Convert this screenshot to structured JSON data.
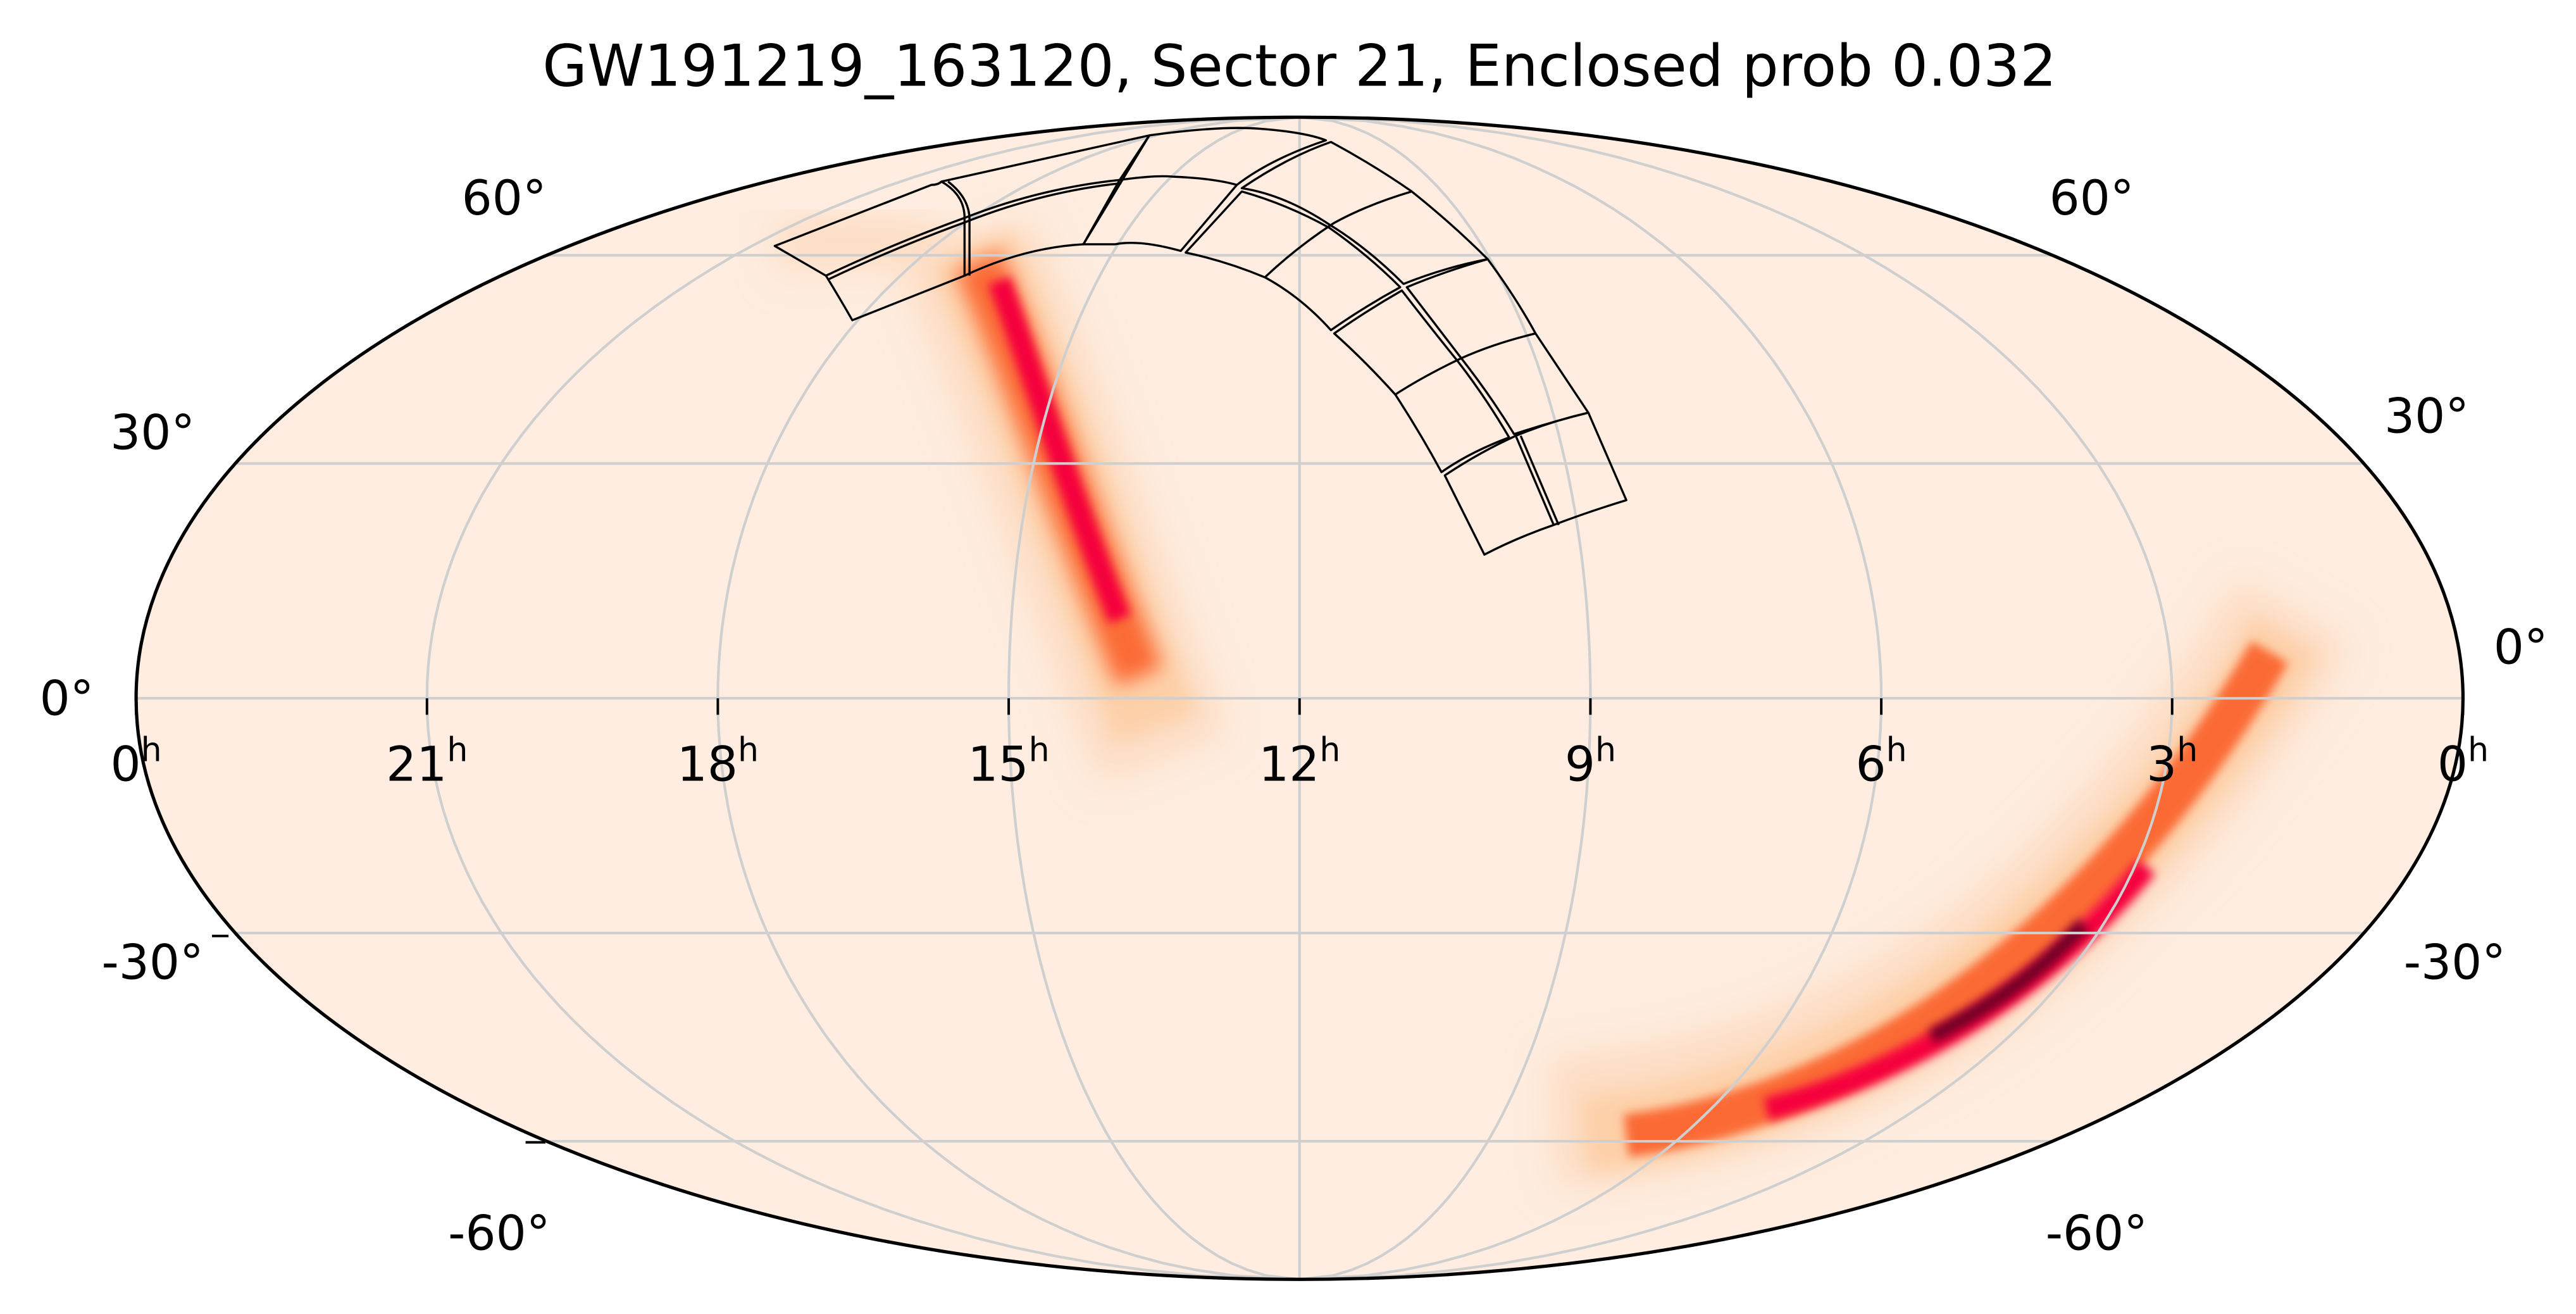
{
  "chart_data": {
    "type": "heatmap",
    "projection": "mollweide",
    "title": "GW191219_163120, Sector 21, Enclosed prob 0.032",
    "event": "GW191219_163120",
    "sector": 21,
    "enclosed_prob": 0.032,
    "xlabel": "",
    "ylabel": "",
    "grid": true,
    "ra_ticks_hours": [
      24,
      21,
      18,
      15,
      12,
      9,
      6,
      3,
      0
    ],
    "ra_tick_labels": [
      "0",
      "21",
      "18",
      "15",
      "12",
      "9",
      "6",
      "3",
      "0"
    ],
    "ra_unit": "h",
    "dec_ticks_deg": [
      60,
      30,
      0,
      -30,
      -60
    ],
    "dec_tick_labels_left": [
      "60°",
      "30°",
      "0°",
      "-30°",
      "-60°"
    ],
    "dec_tick_labels_right": [
      "60°",
      "30°",
      "0°",
      "-30°",
      "-60°"
    ],
    "colors": {
      "background": "#feede0",
      "low": "#fdd0a8",
      "mid": "#fb6a34",
      "high": "#f5003d",
      "peak": "#6e0026",
      "grid": "#cfcfcf",
      "footprint": "#000000"
    }
  }
}
